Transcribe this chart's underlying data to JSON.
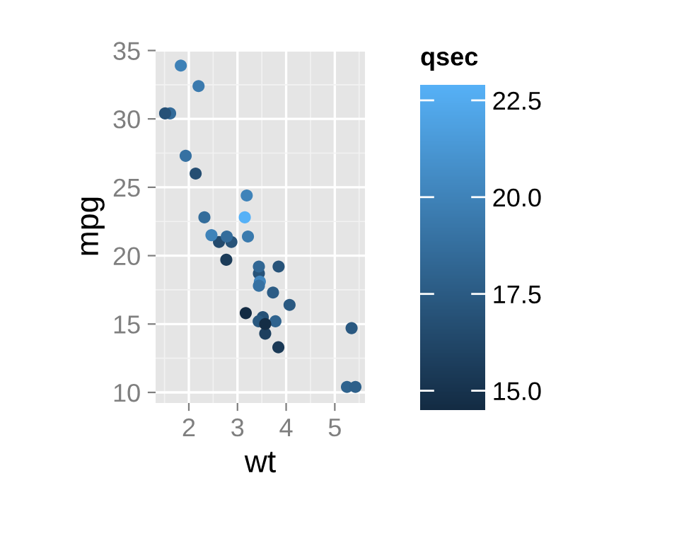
{
  "chart_data": {
    "type": "scatter",
    "xlabel": "wt",
    "ylabel": "mpg",
    "clabel": "qsec",
    "x": [
      2.62,
      2.875,
      2.32,
      3.215,
      3.44,
      3.46,
      3.57,
      3.19,
      3.15,
      3.44,
      3.44,
      4.07,
      3.73,
      3.78,
      5.25,
      5.424,
      5.345,
      2.2,
      1.615,
      1.835,
      2.465,
      3.52,
      3.435,
      3.84,
      3.845,
      1.935,
      2.14,
      1.513,
      3.17,
      2.77,
      3.57,
      2.78
    ],
    "values": [
      21.0,
      21.0,
      22.8,
      21.4,
      18.7,
      18.1,
      14.3,
      24.4,
      22.8,
      19.2,
      17.8,
      16.4,
      17.3,
      15.2,
      10.4,
      10.4,
      14.7,
      32.4,
      30.4,
      33.9,
      21.5,
      15.5,
      15.2,
      13.3,
      19.2,
      27.3,
      26.0,
      30.4,
      15.8,
      19.7,
      15.0,
      21.4
    ],
    "cvalues": [
      16.46,
      17.02,
      18.61,
      19.44,
      17.02,
      20.22,
      15.84,
      20.0,
      22.9,
      18.3,
      18.9,
      17.4,
      17.6,
      18.0,
      17.98,
      17.82,
      17.42,
      19.47,
      18.52,
      19.9,
      20.01,
      16.87,
      17.3,
      15.41,
      17.05,
      18.9,
      16.7,
      16.9,
      14.5,
      15.5,
      14.6,
      18.6
    ],
    "xlim": [
      1.317,
      5.62
    ],
    "ylim": [
      9.225,
      35.075
    ],
    "xticks": [
      2,
      3,
      4,
      5
    ],
    "yticks": [
      10,
      15,
      20,
      25,
      30,
      35
    ],
    "clim": [
      14.5,
      22.9
    ],
    "cticks": [
      {
        "value": 15,
        "label": "15.0"
      },
      {
        "value": 17.5,
        "label": "17.5"
      },
      {
        "value": 20,
        "label": "20.0"
      },
      {
        "value": 22.5,
        "label": "22.5"
      }
    ],
    "grid": true,
    "marker": "circle"
  }
}
